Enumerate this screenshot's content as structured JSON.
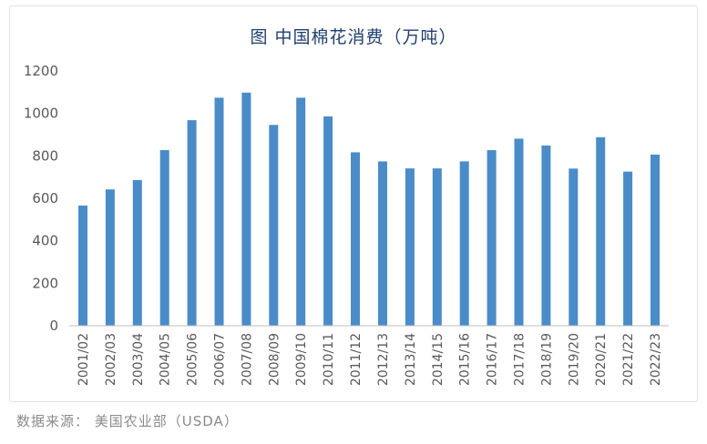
{
  "chart_data": {
    "type": "bar",
    "title": "图 中国棉花消费（万吨）",
    "categories": [
      "2001/02",
      "2002/03",
      "2003/04",
      "2004/05",
      "2005/06",
      "2006/07",
      "2007/08",
      "2008/09",
      "2009/10",
      "2010/11",
      "2011/12",
      "2012/13",
      "2013/14",
      "2014/15",
      "2015/16",
      "2016/17",
      "2017/18",
      "2018/19",
      "2019/20",
      "2020/21",
      "2021/22",
      "2022/23"
    ],
    "values": [
      566,
      642,
      686,
      827,
      968,
      1074,
      1098,
      946,
      1074,
      986,
      817,
      774,
      741,
      741,
      774,
      827,
      881,
      849,
      740,
      888,
      726,
      806
    ],
    "yticks": [
      0,
      200,
      400,
      600,
      800,
      1000,
      1200
    ],
    "ylim": [
      0,
      1200
    ],
    "xlabel": "",
    "ylabel": "",
    "bar_color": "#4a8cc8",
    "grid": false
  },
  "source": "数据来源：  美国农业部（USDA）"
}
